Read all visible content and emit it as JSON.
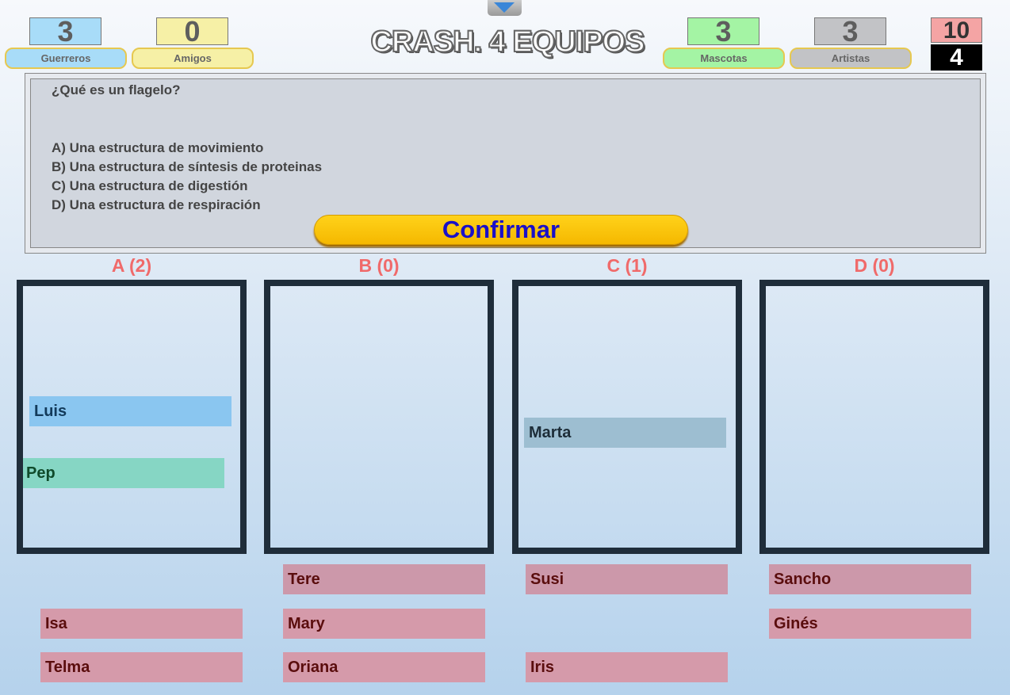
{
  "title": "CRASH. 4 EQUIPOS",
  "toggle_icon": "triangle-down-icon",
  "teams": [
    {
      "name": "Guerreros",
      "score": "3",
      "color": "#a8dcf8"
    },
    {
      "name": "Amigos",
      "score": "0",
      "color": "#f6f0a6"
    },
    {
      "name": "Mascotas",
      "score": "3",
      "color": "#a4f4a4"
    },
    {
      "name": "Artistas",
      "score": "3",
      "color": "#c2c3c6"
    }
  ],
  "counters": {
    "top": "10",
    "bottom": "4"
  },
  "question": {
    "text": "¿Qué es un flagelo?",
    "options": [
      "A) Una estructura de movimiento",
      "B) Una estructura de síntesis de proteinas",
      "C) Una estructura de digestión",
      "D) Una estructura de respiración"
    ]
  },
  "confirm_label": "Confirmar",
  "columns": [
    {
      "label": "A (2)",
      "placed": [
        "Luis",
        "Pep"
      ]
    },
    {
      "label": "B (0)",
      "placed": []
    },
    {
      "label": "C (1)",
      "placed": [
        "Marta"
      ]
    },
    {
      "label": "D (0)",
      "placed": []
    }
  ],
  "unplaced": {
    "A": [
      "Isa",
      "Telma"
    ],
    "B": [
      "Tere",
      "Mary",
      "Oriana"
    ],
    "C": [
      "Susi",
      "Iris"
    ],
    "D": [
      "Sancho",
      "Ginés"
    ]
  }
}
